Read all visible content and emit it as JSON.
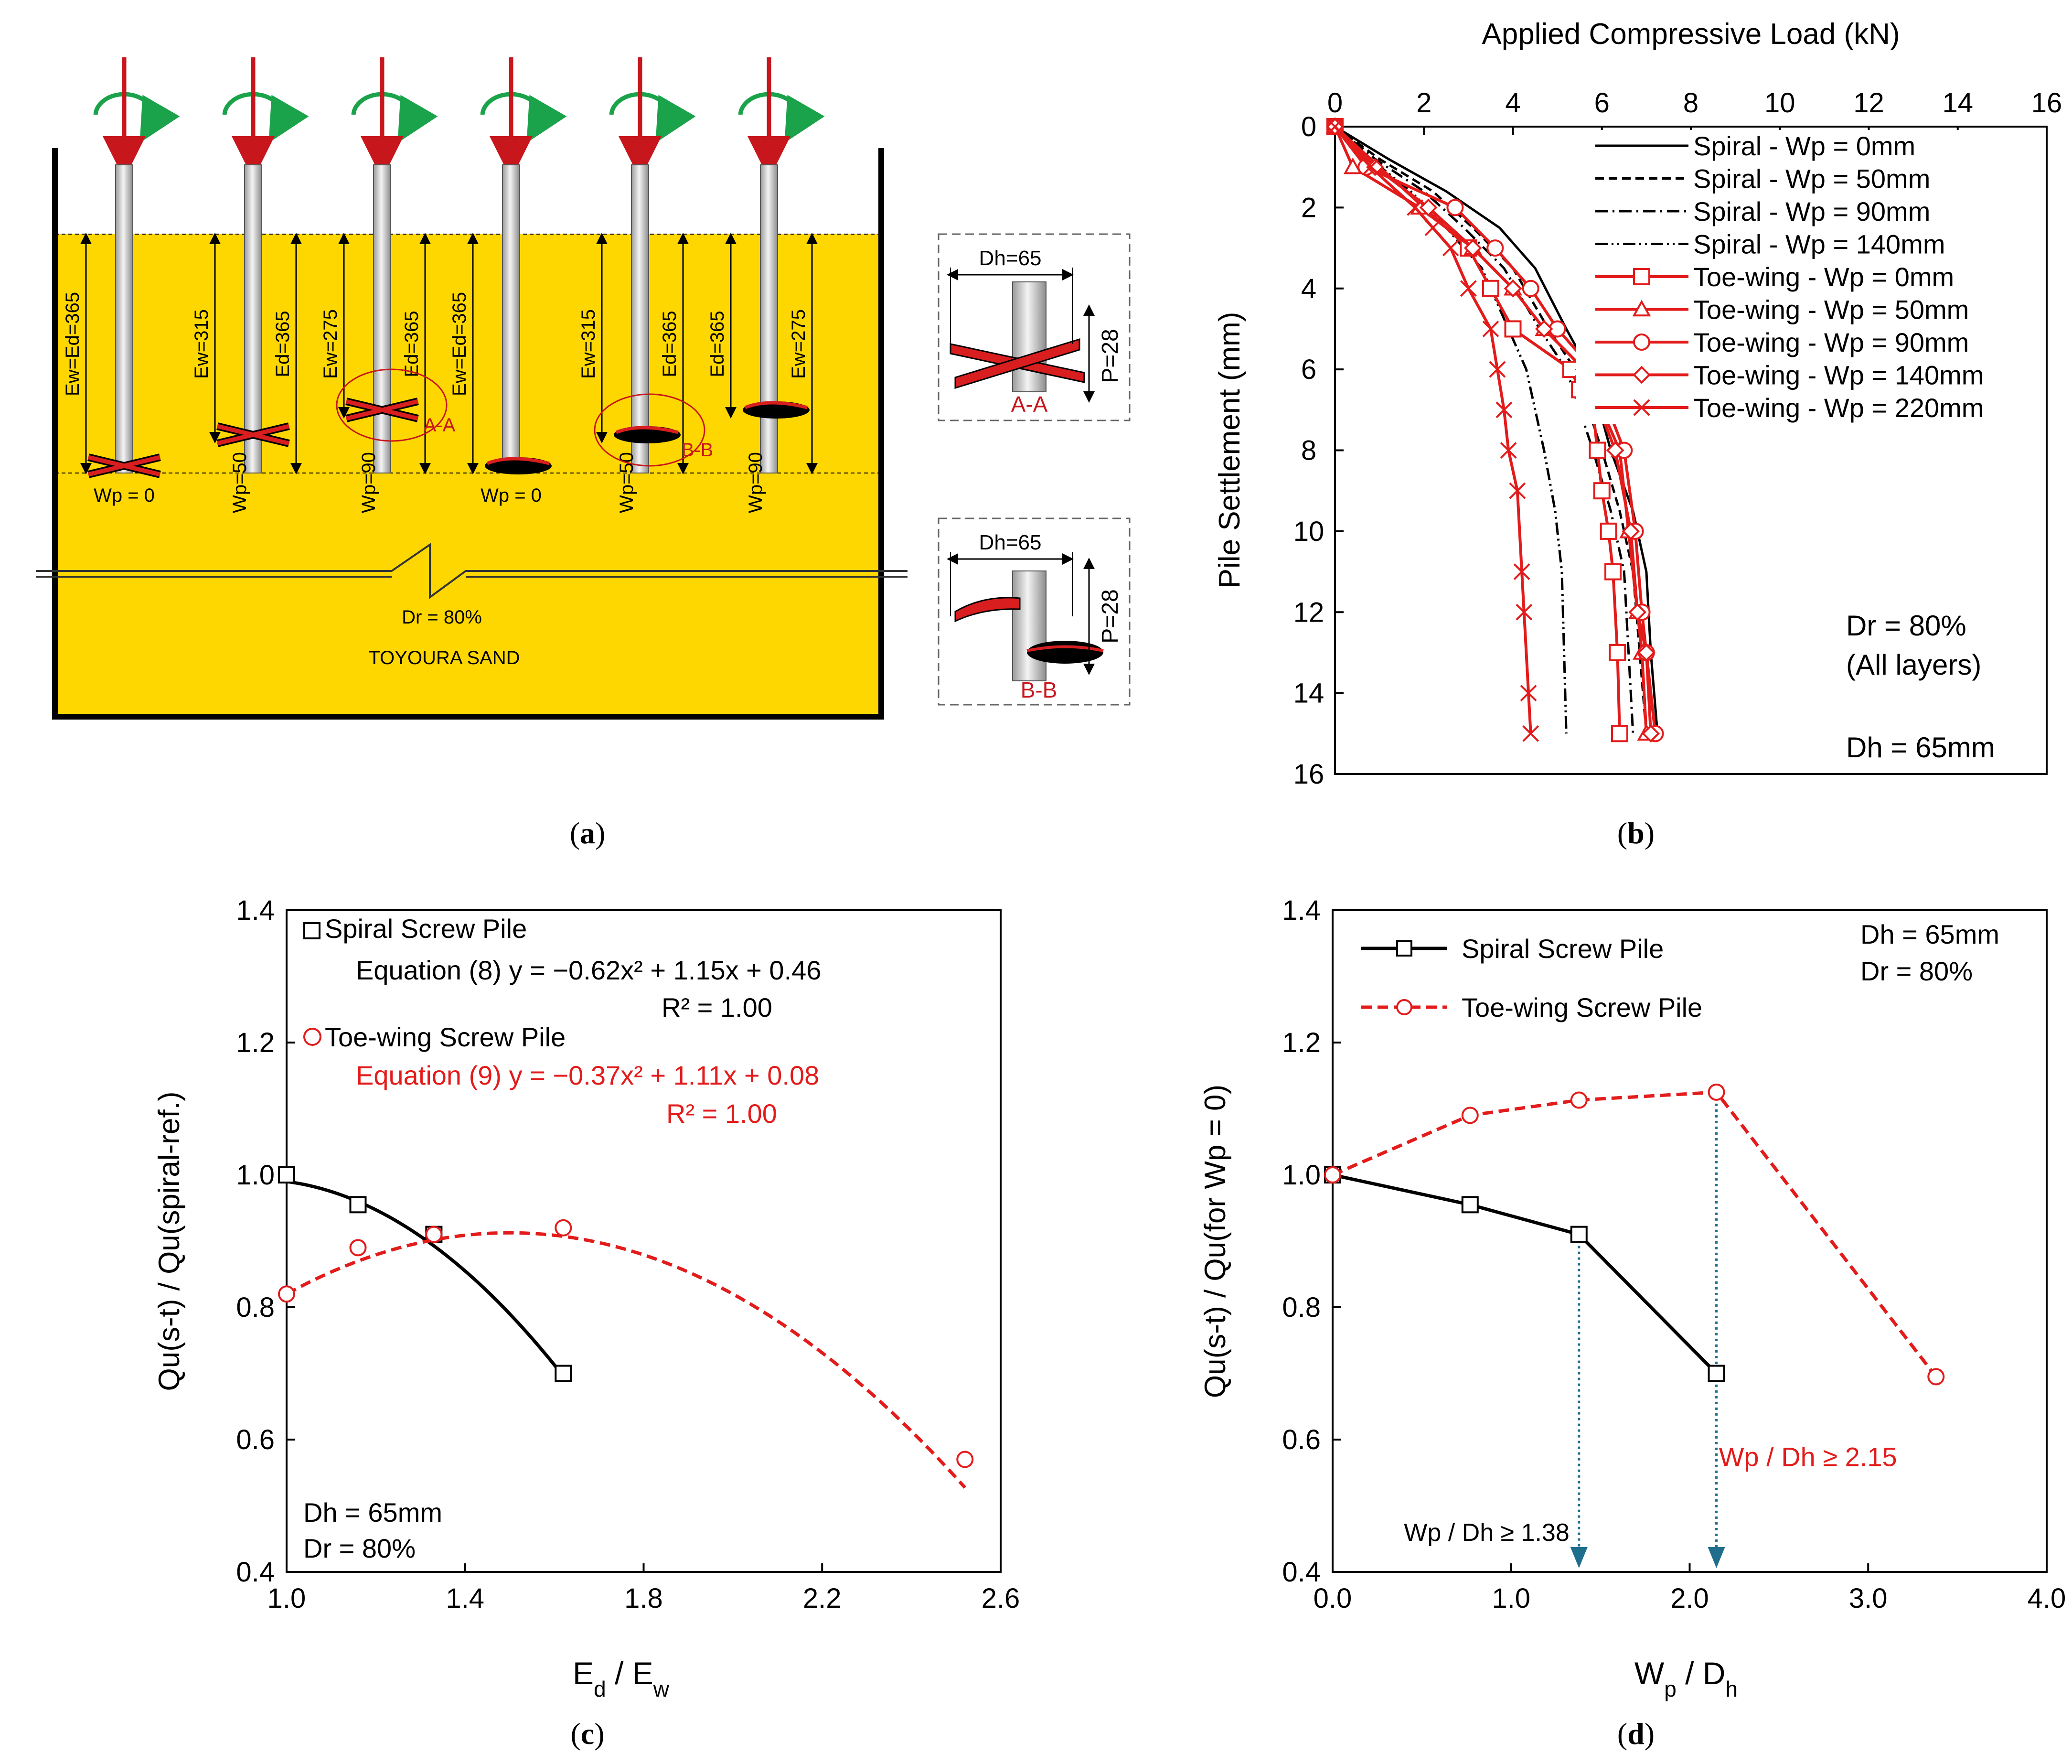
{
  "panels": {
    "a": {
      "caption": "a",
      "sand_label": "TOYOURA SAND",
      "dr_label": "Dr = 80%",
      "piles": [
        {
          "labels": [
            "Ew=Ed=365"
          ],
          "wp_label": "Wp = 0",
          "type": "toe-wing"
        },
        {
          "labels": [
            "Ew=315",
            "Ed=365"
          ],
          "wp_label": "Wp=50",
          "type": "toe-wing"
        },
        {
          "labels": [
            "Ew=275",
            "Ed=365"
          ],
          "wp_label": "Wp=90",
          "type": "toe-wing",
          "section": "A-A"
        },
        {
          "labels": [
            "Ew=Ed=365"
          ],
          "wp_label": "Wp = 0",
          "type": "spiral"
        },
        {
          "labels": [
            "Ew=315",
            "Ed=365"
          ],
          "wp_label": "Wp=50",
          "type": "spiral",
          "section": "B-B"
        },
        {
          "labels": [
            "Ed=365",
            "Ew=275"
          ],
          "wp_label": "Wp=90",
          "type": "spiral"
        }
      ],
      "detail_aa": {
        "dh": "Dh=65",
        "p": "P=28",
        "name": "A-A"
      },
      "detail_bb": {
        "dh": "Dh=65",
        "p": "P=28",
        "name": "B-B"
      }
    },
    "b": {
      "caption": "b"
    },
    "c": {
      "caption": "c"
    },
    "d": {
      "caption": "d"
    }
  },
  "chart_data": [
    {
      "id": "b",
      "type": "line",
      "title": "",
      "xlabel": "Applied Compressive Load (kN)",
      "ylabel": "Pile Settlement (mm)",
      "xlim": [
        0,
        16
      ],
      "ylim": [
        0,
        16
      ],
      "xticks": [
        0,
        2,
        4,
        6,
        8,
        10,
        12,
        14,
        16
      ],
      "yticks": [
        0,
        2,
        4,
        6,
        8,
        10,
        12,
        14,
        16
      ],
      "legend_position": "top-right",
      "annotations": [
        "Dr  = 80%",
        "(All layers)",
        "Dh = 65mm"
      ],
      "series": [
        {
          "name": "Spiral - Wp = 0mm",
          "style": "solid",
          "color": "#000000",
          "x": [
            0,
            1.2,
            2.5,
            3.7,
            4.5,
            5.2,
            5.7,
            6.2,
            6.7,
            7.0,
            7.1,
            7.25
          ],
          "y": [
            0,
            0.8,
            1.6,
            2.5,
            3.5,
            5,
            6,
            8,
            9.5,
            11,
            13,
            15
          ]
        },
        {
          "name": "Spiral - Wp = 50mm",
          "style": "dash",
          "color": "#000000",
          "x": [
            0,
            1.0,
            2.2,
            3.1,
            4.0,
            4.8,
            5.4,
            6.0,
            6.4,
            6.7,
            6.85,
            7.0
          ],
          "y": [
            0,
            0.8,
            1.6,
            2.5,
            3.5,
            5,
            6,
            8,
            9.5,
            11,
            13,
            15
          ]
        },
        {
          "name": "Spiral - Wp = 90mm",
          "style": "dashdot",
          "color": "#000000",
          "x": [
            0,
            0.9,
            2.0,
            2.9,
            3.8,
            4.6,
            5.2,
            5.8,
            6.2,
            6.5,
            6.6,
            6.7
          ],
          "y": [
            0,
            0.8,
            1.6,
            2.5,
            3.5,
            5,
            6,
            8,
            9.5,
            11,
            13,
            15
          ]
        },
        {
          "name": "Spiral - Wp = 140mm",
          "style": "dashdotdot",
          "color": "#000000",
          "x": [
            0,
            0.8,
            1.7,
            2.5,
            3.3,
            3.9,
            4.3,
            4.7,
            4.95,
            5.1,
            5.15,
            5.2
          ],
          "y": [
            0,
            0.8,
            1.6,
            2.5,
            3.5,
            5,
            6,
            8,
            9.5,
            11,
            13,
            15
          ]
        },
        {
          "name": "Toe-wing - Wp = 0mm",
          "style": "solid",
          "color": "#e31b1b",
          "marker": "square",
          "x": [
            0,
            3.0,
            3.5,
            4.0,
            5.3,
            5.5,
            5.8,
            5.9,
            6.0,
            6.15,
            6.25,
            6.35,
            6.4
          ],
          "y": [
            0,
            3,
            4,
            5,
            6,
            6.5,
            7,
            8,
            9,
            10,
            11,
            13,
            15
          ]
        },
        {
          "name": "Toe-wing - Wp = 50mm",
          "style": "solid",
          "color": "#e31b1b",
          "marker": "triangle",
          "x": [
            0,
            0.4,
            1.9,
            3.1,
            4.0,
            4.7,
            5.6,
            6.4,
            6.6,
            6.8,
            6.9,
            7.0
          ],
          "y": [
            0,
            1,
            2,
            3,
            4,
            5,
            6,
            8,
            10,
            12,
            13,
            15
          ]
        },
        {
          "name": "Toe-wing - Wp = 90mm",
          "style": "solid",
          "color": "#e31b1b",
          "marker": "circle",
          "x": [
            0,
            0.7,
            2.7,
            3.6,
            4.4,
            5.0,
            5.8,
            6.5,
            6.75,
            6.9,
            7.0,
            7.2
          ],
          "y": [
            0,
            1,
            2,
            3,
            4,
            5,
            6,
            8,
            10,
            12,
            13,
            15
          ]
        },
        {
          "name": "Toe-wing - Wp = 140mm",
          "style": "solid",
          "color": "#e31b1b",
          "marker": "diamond",
          "x": [
            0,
            0.9,
            2.1,
            3.1,
            4.0,
            4.7,
            5.6,
            6.3,
            6.65,
            6.8,
            7.0,
            7.1
          ],
          "y": [
            0,
            1,
            2,
            3,
            4,
            5,
            6,
            8,
            10,
            12,
            13,
            15
          ]
        },
        {
          "name": "Toe-wing - Wp = 220mm",
          "style": "solid",
          "color": "#e31b1b",
          "marker": "cross",
          "x": [
            0,
            0.8,
            1.8,
            2.2,
            2.6,
            3.0,
            3.5,
            3.65,
            3.8,
            3.9,
            4.1,
            4.2,
            4.25,
            4.35,
            4.4
          ],
          "y": [
            0,
            1,
            2,
            2.5,
            3,
            4,
            5,
            6,
            7,
            8,
            9,
            11,
            12,
            14,
            15
          ]
        }
      ]
    },
    {
      "id": "c",
      "type": "scatter",
      "title": "",
      "xlabel": "Ed / Ew",
      "ylabel": "Qu(s-t) / Qu(spiral-ref.)",
      "xlim": [
        1.0,
        2.6
      ],
      "ylim": [
        0.4,
        1.4
      ],
      "xticks": [
        1.0,
        1.4,
        1.8,
        2.2,
        2.6
      ],
      "yticks": [
        0.4,
        0.6,
        0.8,
        1.0,
        1.2,
        1.4
      ],
      "annotations": [
        "Dh = 65mm",
        "Dr  = 80%"
      ],
      "series": [
        {
          "name": "Spiral Screw Pile",
          "marker": "square",
          "color": "#000000",
          "x": [
            1.0,
            1.16,
            1.33,
            1.62
          ],
          "y": [
            1.0,
            0.955,
            0.91,
            0.7
          ],
          "fit": {
            "label": "Equation (8)  y = −0.62x² + 1.15x + 0.46",
            "r2": "R² = 1.00",
            "a": -0.62,
            "b": 1.15,
            "c": 0.46,
            "style": "solid"
          }
        },
        {
          "name": "Toe-wing Screw Pile",
          "marker": "circle",
          "color": "#e31b1b",
          "x": [
            1.0,
            1.16,
            1.33,
            1.62,
            2.52
          ],
          "y": [
            0.82,
            0.89,
            0.91,
            0.92,
            0.57
          ],
          "fit": {
            "label": "Equation (9)  y = −0.37x² + 1.11x + 0.08",
            "r2": "R² = 1.00",
            "a": -0.37,
            "b": 1.11,
            "c": 0.08,
            "style": "dash"
          }
        }
      ]
    },
    {
      "id": "d",
      "type": "line",
      "title": "",
      "xlabel": "Wp / Dh",
      "ylabel": "Qu(s-t) / Qu(for Wp = 0)",
      "xlim": [
        0.0,
        4.0
      ],
      "ylim": [
        0.4,
        1.4
      ],
      "xticks": [
        0.0,
        1.0,
        2.0,
        3.0,
        4.0
      ],
      "yticks": [
        0.4,
        0.6,
        0.8,
        1.0,
        1.2,
        1.4
      ],
      "annotations": [
        "Dh = 65mm",
        "Dr  = 80%"
      ],
      "thresholds": [
        {
          "x": 1.38,
          "from_y": 0.91,
          "label": "Wp / Dh ≥ 1.38",
          "color": "#000000"
        },
        {
          "x": 2.15,
          "from_y": 1.125,
          "label": "Wp / Dh ≥ 2.15",
          "color": "#e31b1b"
        }
      ],
      "series": [
        {
          "name": "Spiral Screw Pile",
          "marker": "square",
          "color": "#000000",
          "style": "solid",
          "x": [
            0.0,
            0.77,
            1.38,
            2.15
          ],
          "y": [
            1.0,
            0.955,
            0.91,
            0.7
          ]
        },
        {
          "name": "Toe-wing Screw Pile",
          "marker": "circle",
          "color": "#e31b1b",
          "style": "dash",
          "x": [
            0.0,
            0.77,
            1.38,
            2.15,
            3.38
          ],
          "y": [
            1.0,
            1.09,
            1.113,
            1.125,
            0.695
          ]
        }
      ]
    }
  ]
}
